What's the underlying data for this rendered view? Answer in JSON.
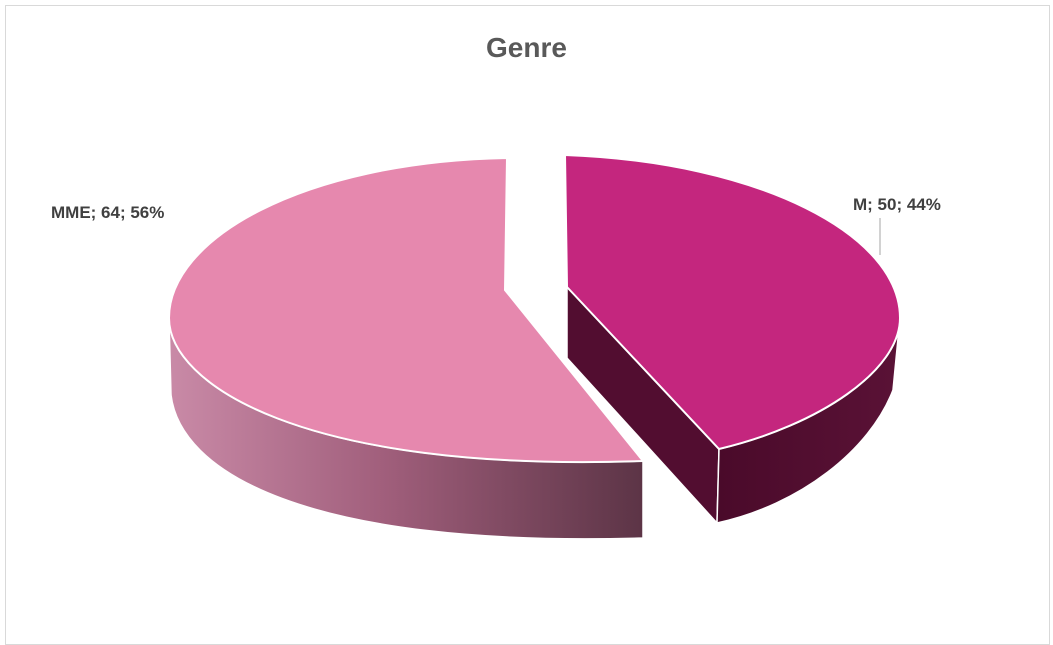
{
  "chart_data": {
    "type": "pie",
    "style": "3d-exploded",
    "title": "Genre",
    "slices": [
      {
        "label": "M",
        "value": 50,
        "percent": 44,
        "color": "#c4267e",
        "side_color": "#520d30"
      },
      {
        "label": "MME",
        "value": 64,
        "percent": 56,
        "color": "#e688ae",
        "side_color": "#a15f7c"
      }
    ],
    "data_labels": [
      "M; 50; 44%",
      "MME; 64; 56%"
    ],
    "legend": "none"
  }
}
